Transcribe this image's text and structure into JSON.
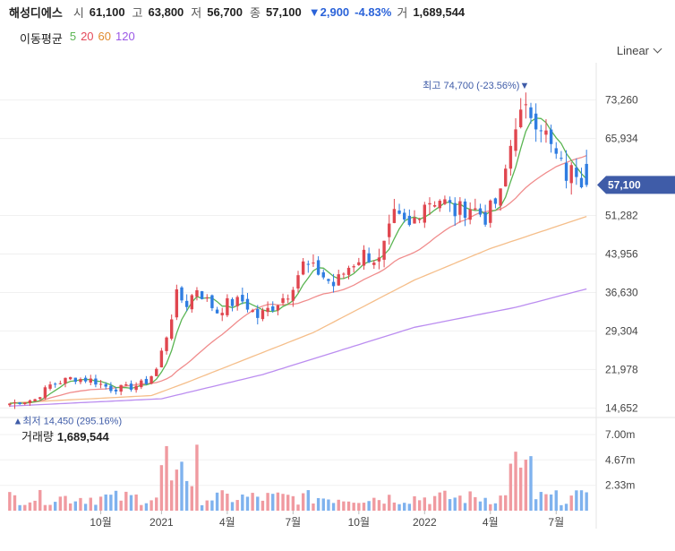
{
  "header": {
    "name": "해성디에스",
    "open_label": "시",
    "open": "61,100",
    "high_label": "고",
    "high": "63,800",
    "low_label": "저",
    "low": "56,700",
    "close_label": "종",
    "close": "57,100",
    "change": "▼2,900",
    "change_pct": "-4.83%",
    "volume_label": "거",
    "volume": "1,689,544"
  },
  "ma_legend": {
    "title": "이동평균",
    "p5": "5",
    "p20": "20",
    "p60": "60",
    "p120": "120"
  },
  "scale": {
    "label": "Linear"
  },
  "annotations": {
    "max_label": "최고 74,700 (-23.56%)▼",
    "min_label": "▲최저 14,450 (295.16%)",
    "current_price": "57,100"
  },
  "volume_panel": {
    "title": "거래량",
    "value": "1,689,544"
  },
  "colors": {
    "up": "#e0464f",
    "down": "#2f7de1",
    "ma5": "#5ab552",
    "ma20": "#f08c8c",
    "ma60": "#f5be8a",
    "ma120": "#bb8df0",
    "badge": "#3f5ca8",
    "axis_text": "#444444"
  },
  "chart_data": {
    "type": "candlestick",
    "title": "해성디에스",
    "price_axis": {
      "ticks": [
        14652,
        21978,
        29304,
        36630,
        43956,
        51282,
        65934,
        73260
      ],
      "tick_labels": [
        "14,652",
        "21,978",
        "29,304",
        "36,630",
        "43,956",
        "51,282",
        "65,934",
        "73,260"
      ],
      "range": [
        13000,
        79000
      ]
    },
    "volume_axis": {
      "tick_labels": [
        "2.33m",
        "4.67m",
        "7.00m"
      ],
      "ticks": [
        2.33,
        4.67,
        7.0
      ],
      "range": [
        0,
        8.4
      ]
    },
    "time_axis": {
      "labels": [
        "10월",
        "2021",
        "4월",
        "7월",
        "10월",
        "2022",
        "4월",
        "7월"
      ],
      "positions": [
        18,
        30,
        43,
        56,
        69,
        82,
        95,
        108
      ]
    },
    "x_count": 115,
    "close_anchors": [
      [
        0,
        15500
      ],
      [
        5,
        16300
      ],
      [
        8,
        19000
      ],
      [
        12,
        20300
      ],
      [
        16,
        20000
      ],
      [
        20,
        18300
      ],
      [
        24,
        18600
      ],
      [
        27,
        19600
      ],
      [
        29,
        22000
      ],
      [
        31,
        28500
      ],
      [
        33,
        36000
      ],
      [
        35,
        34500
      ],
      [
        37,
        37500
      ],
      [
        39,
        35000
      ],
      [
        41,
        33000
      ],
      [
        43,
        34500
      ],
      [
        46,
        35000
      ],
      [
        49,
        32000
      ],
      [
        52,
        34000
      ],
      [
        55,
        36500
      ],
      [
        58,
        42000
      ],
      [
        61,
        40500
      ],
      [
        64,
        38000
      ],
      [
        67,
        41500
      ],
      [
        70,
        44000
      ],
      [
        73,
        42500
      ],
      [
        76,
        51000
      ],
      [
        79,
        49000
      ],
      [
        82,
        54000
      ],
      [
        85,
        54500
      ],
      [
        88,
        52000
      ],
      [
        91,
        53000
      ],
      [
        94,
        51000
      ],
      [
        97,
        55000
      ],
      [
        100,
        69500
      ],
      [
        103,
        71000
      ],
      [
        105,
        69000
      ],
      [
        107,
        64000
      ],
      [
        110,
        59000
      ],
      [
        112,
        60000
      ],
      [
        114,
        57100
      ]
    ],
    "ma120_anchors": [
      [
        0,
        15000
      ],
      [
        30,
        16400
      ],
      [
        50,
        21000
      ],
      [
        80,
        30000
      ],
      [
        100,
        33800
      ],
      [
        114,
        37300
      ]
    ],
    "ma60_anchors": [
      [
        0,
        15600
      ],
      [
        28,
        17000
      ],
      [
        35,
        19500
      ],
      [
        60,
        29000
      ],
      [
        80,
        39000
      ],
      [
        95,
        45000
      ],
      [
        114,
        51100
      ]
    ],
    "max_point": {
      "x_index": 102,
      "value": 74700
    },
    "min_point": {
      "x_index": 1,
      "value": 14450
    },
    "last": {
      "open": 61100,
      "high": 63800,
      "low": 56700,
      "close": 57100,
      "volume": 1689544
    },
    "series": [
      "price",
      "MA5",
      "MA20",
      "MA60",
      "MA120",
      "volume"
    ]
  }
}
